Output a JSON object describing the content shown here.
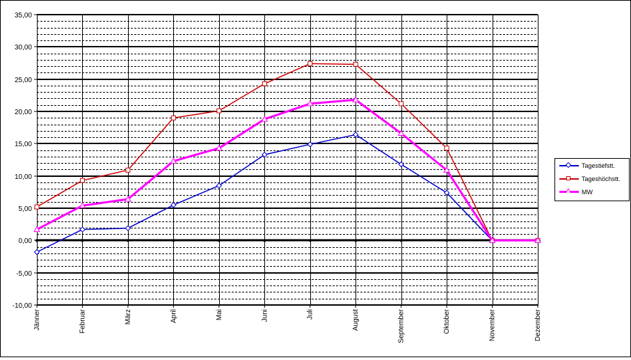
{
  "chart_data": {
    "type": "line",
    "categories": [
      "Jänner",
      "Februar",
      "März",
      "April",
      "Mai",
      "Juni",
      "Juli",
      "August",
      "September",
      "Oktober",
      "November",
      "Dezember"
    ],
    "series": [
      {
        "name": "Tagestiefstt.",
        "color": "#0000cc",
        "marker": "diamond",
        "values": [
          -1.8,
          1.7,
          1.9,
          5.5,
          8.5,
          13.3,
          14.9,
          16.4,
          11.8,
          7.4,
          0,
          0
        ]
      },
      {
        "name": "Tageshöchstt.",
        "color": "#cc0000",
        "marker": "square",
        "values": [
          5.2,
          9.3,
          10.9,
          19.0,
          20.1,
          24.3,
          27.4,
          27.3,
          21.2,
          14.3,
          0,
          0
        ]
      },
      {
        "name": "MW",
        "color": "#ff00ff",
        "marker": "triangle",
        "values": [
          1.7,
          5.4,
          6.4,
          12.3,
          14.3,
          18.8,
          21.2,
          21.8,
          16.6,
          10.9,
          0,
          0
        ]
      }
    ],
    "yticks": [
      "35,00",
      "30,00",
      "25,00",
      "20,00",
      "15,00",
      "10,00",
      "5,00",
      "0,00",
      "-5,00",
      "-10,00"
    ],
    "ylim": [
      -10,
      35
    ],
    "major_step": 5,
    "minor_step": 1,
    "grid": true,
    "legend": "right"
  }
}
